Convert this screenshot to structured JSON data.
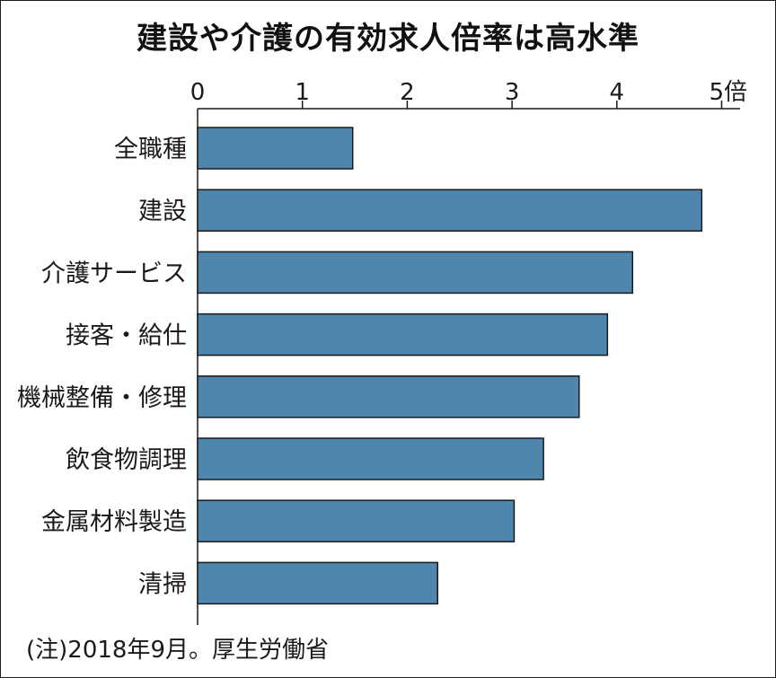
{
  "title": "建設や介護の有効求人倍率は高水準",
  "note": "(注)2018年9月。厚生労働省",
  "chart_data": {
    "type": "bar",
    "orientation": "horizontal",
    "title": "建設や介護の有効求人倍率は高水準",
    "categories": [
      "全職種",
      "建設",
      "介護サービス",
      "接客・給仕",
      "機械整備・修理",
      "飲食物調理",
      "金属材料製造",
      "清掃"
    ],
    "values": [
      1.48,
      4.81,
      4.15,
      3.91,
      3.64,
      3.3,
      3.02,
      2.29
    ],
    "xlim": [
      0,
      5
    ],
    "tick_labels": [
      "0",
      "1",
      "2",
      "3",
      "4",
      "5倍"
    ],
    "axis_position": "top",
    "bar_color": "#4f86ad",
    "bar_edge_color": "#1a1a1a"
  }
}
